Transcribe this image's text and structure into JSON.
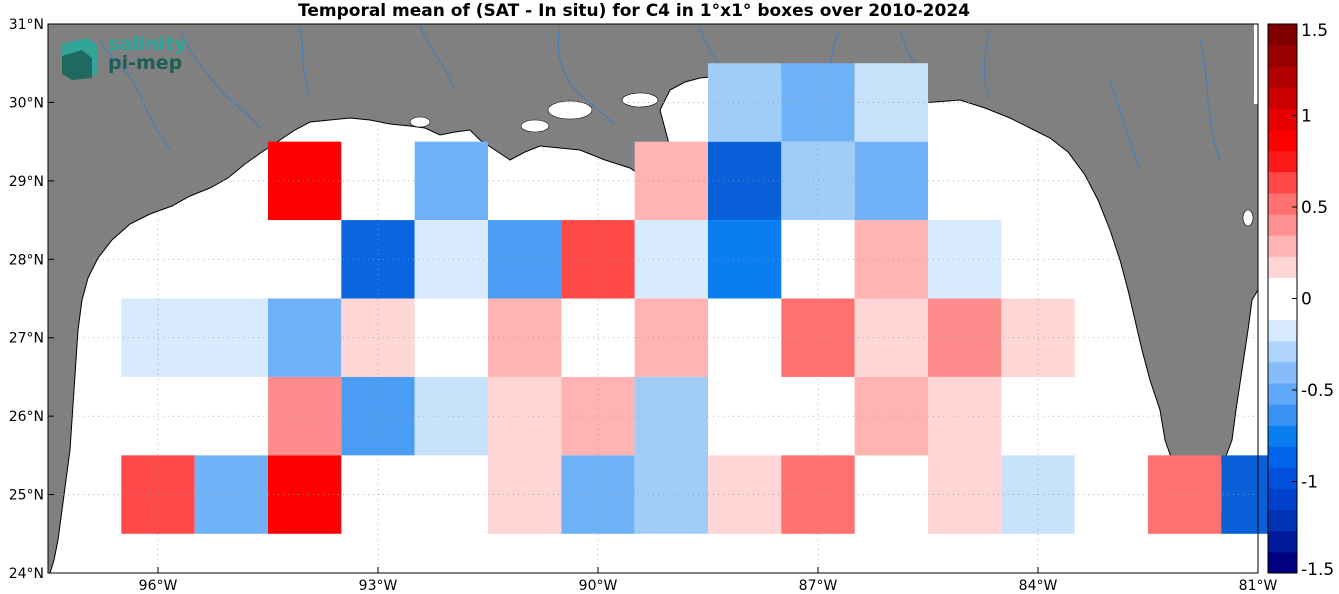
{
  "title": "Temporal mean of (SAT - In situ) for C4 in 1°x1° boxes over 2010-2024",
  "logo": {
    "line1": "salinity",
    "line2": "pi-mep"
  },
  "map": {
    "lon_range": [
      -97.5,
      -81
    ],
    "lat_range": [
      24,
      31
    ],
    "x_ticks": [
      {
        "lon": -96,
        "label": "96°W"
      },
      {
        "lon": -93,
        "label": "93°W"
      },
      {
        "lon": -90,
        "label": "90°W"
      },
      {
        "lon": -87,
        "label": "87°W"
      },
      {
        "lon": -84,
        "label": "84°W"
      },
      {
        "lon": -81,
        "label": "81°W"
      }
    ],
    "y_ticks": [
      {
        "lat": 24,
        "label": "24°N"
      },
      {
        "lat": 25,
        "label": "25°N"
      },
      {
        "lat": 26,
        "label": "26°N"
      },
      {
        "lat": 27,
        "label": "27°N"
      },
      {
        "lat": 28,
        "label": "28°N"
      },
      {
        "lat": 29,
        "label": "29°N"
      },
      {
        "lat": 30,
        "label": "30°N"
      },
      {
        "lat": 31,
        "label": "31°N"
      }
    ],
    "land_color": "#808080",
    "river_color": "#3a7ec2"
  },
  "colorbar": {
    "range": [
      -1.5,
      1.5
    ],
    "n_levels": 22,
    "ticks": [
      {
        "value": 1.5,
        "label": "1.5"
      },
      {
        "value": 1,
        "label": "1"
      },
      {
        "value": 0.5,
        "label": "0.5"
      },
      {
        "value": 0,
        "label": "0"
      },
      {
        "value": -0.5,
        "label": "-0.5"
      },
      {
        "value": -1,
        "label": "-1"
      },
      {
        "value": -1.5,
        "label": "-1.5"
      }
    ]
  },
  "cells": [
    {
      "lon": -94,
      "lat": 29,
      "color": "#ff0000"
    },
    {
      "lon": -92,
      "lat": 29,
      "color": "#70b2f8"
    },
    {
      "lon": -89,
      "lat": 29,
      "color": "#ffb3b3"
    },
    {
      "lon": -88,
      "lat": 29,
      "color": "#0a60d8"
    },
    {
      "lon": -87,
      "lat": 29,
      "color": "#a0ccf8"
    },
    {
      "lon": -86,
      "lat": 29,
      "color": "#70b2f8"
    },
    {
      "lon": -88,
      "lat": 30,
      "color": "#a0ccf8"
    },
    {
      "lon": -87,
      "lat": 30,
      "color": "#70b2f8"
    },
    {
      "lon": -86,
      "lat": 30,
      "color": "#c8e2fc"
    },
    {
      "lon": -93,
      "lat": 28,
      "color": "#0a66e0"
    },
    {
      "lon": -92,
      "lat": 28,
      "color": "#d8eafd"
    },
    {
      "lon": -91,
      "lat": 28,
      "color": "#4a9df2"
    },
    {
      "lon": -90,
      "lat": 28,
      "color": "#ff4848"
    },
    {
      "lon": -89,
      "lat": 28,
      "color": "#d8eafd"
    },
    {
      "lon": -88,
      "lat": 28,
      "color": "#0a7ef0"
    },
    {
      "lon": -86,
      "lat": 28,
      "color": "#ffb3b3"
    },
    {
      "lon": -85,
      "lat": 28,
      "color": "#d8eafd"
    },
    {
      "lon": -96,
      "lat": 27,
      "color": "#d8eafd"
    },
    {
      "lon": -95,
      "lat": 27,
      "color": "#d8eafd"
    },
    {
      "lon": -94,
      "lat": 27,
      "color": "#70b2f8"
    },
    {
      "lon": -93,
      "lat": 27,
      "color": "#ffd6d6"
    },
    {
      "lon": -91,
      "lat": 27,
      "color": "#ffb3b3"
    },
    {
      "lon": -89,
      "lat": 27,
      "color": "#ffb3b3"
    },
    {
      "lon": -87,
      "lat": 27,
      "color": "#ff7070"
    },
    {
      "lon": -86,
      "lat": 27,
      "color": "#ffd6d6"
    },
    {
      "lon": -85,
      "lat": 27,
      "color": "#ff8c8c"
    },
    {
      "lon": -84,
      "lat": 27,
      "color": "#ffd6d6"
    },
    {
      "lon": -94,
      "lat": 26,
      "color": "#ff8c8c"
    },
    {
      "lon": -93,
      "lat": 26,
      "color": "#4a9df2"
    },
    {
      "lon": -92,
      "lat": 26,
      "color": "#c8e2fc"
    },
    {
      "lon": -91,
      "lat": 26,
      "color": "#ffd6d6"
    },
    {
      "lon": -90,
      "lat": 26,
      "color": "#ffb3b3"
    },
    {
      "lon": -89,
      "lat": 26,
      "color": "#a0ccf8"
    },
    {
      "lon": -86,
      "lat": 26,
      "color": "#ffb3b3"
    },
    {
      "lon": -85,
      "lat": 26,
      "color": "#ffd6d6"
    },
    {
      "lon": -96,
      "lat": 25,
      "color": "#ff4848"
    },
    {
      "lon": -95,
      "lat": 25,
      "color": "#70b2f8"
    },
    {
      "lon": -94,
      "lat": 25,
      "color": "#ff0000"
    },
    {
      "lon": -91,
      "lat": 25,
      "color": "#ffd6d6"
    },
    {
      "lon": -90,
      "lat": 25,
      "color": "#70b2f8"
    },
    {
      "lon": -89,
      "lat": 25,
      "color": "#a0ccf8"
    },
    {
      "lon": -88,
      "lat": 25,
      "color": "#ffd6d6"
    },
    {
      "lon": -87,
      "lat": 25,
      "color": "#ff7070"
    },
    {
      "lon": -85,
      "lat": 25,
      "color": "#ffd6d6"
    },
    {
      "lon": -84,
      "lat": 25,
      "color": "#c8e2fc"
    },
    {
      "lon": -82,
      "lat": 25,
      "color": "#ff7070"
    },
    {
      "lon": -81,
      "lat": 25,
      "color": "#0a60d8"
    }
  ]
}
